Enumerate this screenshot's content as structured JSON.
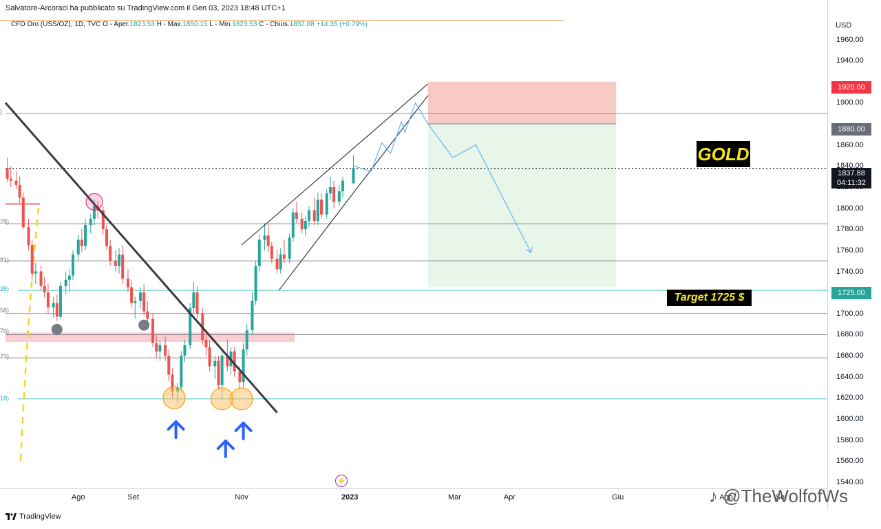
{
  "header": {
    "publisher": "Salvatore-Arcoraci ha pubblicato su TradingView.com il Gen 03, 2023 18:48 UTC+1",
    "symbol": "CFD Oro (USS/OZ), 1D, TVC",
    "open_label": "O - Aper.",
    "open": "1823.53",
    "high_label": "H - Max.",
    "high": "1850.15",
    "low_label": "L - Min.",
    "low": "1823.53",
    "close_label": "C - Chius.",
    "close": "1837.88",
    "change": "+14.35 (+0.79%)"
  },
  "axis": {
    "currency": "USD"
  },
  "price_badges": {
    "stop": "1920.00",
    "entry": "1880.00",
    "last": "1837.88",
    "countdown": "04:11:32",
    "target": "1725.00"
  },
  "annotations": {
    "gold": "GOLD",
    "target": "Target 1725 $",
    "fib_labels": [
      ")",
      "28)",
      "81)",
      "25)",
      "58)",
      "70)",
      "23)",
      "18)"
    ]
  },
  "footer": {
    "brand": "TradingView",
    "watermark": "@TheWolfofWs"
  },
  "colors": {
    "up": "#26a69a",
    "down": "#ef5350",
    "stop_zone": "#f8cac6",
    "target_zone": "#e8f5e9",
    "trendline": "#363a45",
    "projection": "#64b5f6",
    "fib": "#5ecbd1",
    "support_zone": "#f8c5cb",
    "arrow": "#2962ff",
    "label_bg": "#000000",
    "label_text": "#f5e61c"
  },
  "chart_data": {
    "type": "candlestick",
    "title": "",
    "y_axis_ticks": [
      1960,
      1940,
      1920,
      1900,
      1880,
      1860,
      1840,
      1820,
      1800,
      1780,
      1760,
      1740,
      1720,
      1700,
      1680,
      1660,
      1640,
      1620,
      1600,
      1580,
      1560,
      1540
    ],
    "y_axis_tick_labels": [
      "1960.00",
      "1940.00",
      "1920.00",
      "1900.00",
      "1880.00",
      "1860.00",
      "1840.00",
      "1820.00",
      "1800.00",
      "1780.00",
      "1760.00",
      "1740.00",
      "1720.00",
      "1700.00",
      "1680.00",
      "1660.00",
      "1640.00",
      "1620.00",
      "1600.00",
      "1580.00",
      "1560.00",
      "1540.00"
    ],
    "ylim": [
      1534,
      1978
    ],
    "x_axis_ticks": [
      {
        "label": "Ago",
        "date": "2022-08-01"
      },
      {
        "label": "Set",
        "date": "2022-09-01"
      },
      {
        "label": "Nov",
        "date": "2022-11-01"
      },
      {
        "label": "2023",
        "date": "2023-01-01"
      },
      {
        "label": "Mar",
        "date": "2023-03-01"
      },
      {
        "label": "Apr",
        "date": "2023-04-01"
      },
      {
        "label": "Giu",
        "date": "2023-06-01"
      },
      {
        "label": "Ago",
        "date": "2023-08-01"
      },
      {
        "label": "Set",
        "date": "2023-09-01"
      }
    ],
    "xlim": [
      "2022-06-21",
      "2023-09-27"
    ],
    "series": [
      {
        "type": "candles",
        "columns": [
          "date",
          "open",
          "high",
          "low",
          "close"
        ],
        "values": [
          [
            "2022-06-22",
            1838,
            1848,
            1825,
            1828
          ],
          [
            "2022-06-24",
            1828,
            1840,
            1820,
            1826
          ],
          [
            "2022-06-27",
            1826,
            1835,
            1818,
            1822
          ],
          [
            "2022-06-29",
            1822,
            1830,
            1805,
            1810
          ],
          [
            "2022-07-01",
            1810,
            1815,
            1780,
            1782
          ],
          [
            "2022-07-04",
            1782,
            1790,
            1760,
            1765
          ],
          [
            "2022-07-06",
            1765,
            1770,
            1732,
            1738
          ],
          [
            "2022-07-08",
            1738,
            1748,
            1728,
            1740
          ],
          [
            "2022-07-11",
            1740,
            1745,
            1722,
            1726
          ],
          [
            "2022-07-13",
            1726,
            1735,
            1715,
            1720
          ],
          [
            "2022-07-15",
            1720,
            1728,
            1700,
            1706
          ],
          [
            "2022-07-18",
            1706,
            1716,
            1696,
            1710
          ],
          [
            "2022-07-20",
            1710,
            1718,
            1693,
            1697
          ],
          [
            "2022-07-22",
            1697,
            1730,
            1695,
            1726
          ],
          [
            "2022-07-25",
            1726,
            1740,
            1718,
            1732
          ],
          [
            "2022-07-27",
            1732,
            1742,
            1720,
            1736
          ],
          [
            "2022-07-29",
            1736,
            1760,
            1732,
            1756
          ],
          [
            "2022-08-01",
            1756,
            1775,
            1750,
            1770
          ],
          [
            "2022-08-03",
            1770,
            1780,
            1758,
            1764
          ],
          [
            "2022-08-05",
            1764,
            1790,
            1760,
            1784
          ],
          [
            "2022-08-08",
            1784,
            1795,
            1776,
            1790
          ],
          [
            "2022-08-10",
            1790,
            1808,
            1784,
            1802
          ],
          [
            "2022-08-12",
            1802,
            1807,
            1790,
            1798
          ],
          [
            "2022-08-15",
            1798,
            1802,
            1775,
            1780
          ],
          [
            "2022-08-17",
            1780,
            1784,
            1760,
            1764
          ],
          [
            "2022-08-19",
            1764,
            1770,
            1745,
            1750
          ],
          [
            "2022-08-22",
            1750,
            1760,
            1740,
            1745
          ],
          [
            "2022-08-24",
            1745,
            1762,
            1738,
            1756
          ],
          [
            "2022-08-26",
            1756,
            1765,
            1728,
            1733
          ],
          [
            "2022-08-29",
            1733,
            1742,
            1720,
            1725
          ],
          [
            "2022-08-31",
            1725,
            1732,
            1706,
            1710
          ],
          [
            "2022-09-02",
            1710,
            1716,
            1695,
            1712
          ],
          [
            "2022-09-05",
            1712,
            1725,
            1705,
            1720
          ],
          [
            "2022-09-07",
            1720,
            1728,
            1698,
            1702
          ],
          [
            "2022-09-09",
            1702,
            1712,
            1690,
            1695
          ],
          [
            "2022-09-12",
            1695,
            1700,
            1668,
            1672
          ],
          [
            "2022-09-14",
            1672,
            1680,
            1658,
            1664
          ],
          [
            "2022-09-16",
            1664,
            1675,
            1655,
            1670
          ],
          [
            "2022-09-19",
            1670,
            1678,
            1655,
            1660
          ],
          [
            "2022-09-21",
            1660,
            1666,
            1636,
            1642
          ],
          [
            "2022-09-23",
            1642,
            1648,
            1620,
            1626
          ],
          [
            "2022-09-26",
            1626,
            1634,
            1615,
            1630
          ],
          [
            "2022-09-28",
            1630,
            1664,
            1626,
            1660
          ],
          [
            "2022-09-30",
            1660,
            1675,
            1654,
            1670
          ],
          [
            "2022-10-03",
            1670,
            1710,
            1666,
            1705
          ],
          [
            "2022-10-05",
            1705,
            1730,
            1700,
            1720
          ],
          [
            "2022-10-07",
            1720,
            1726,
            1695,
            1700
          ],
          [
            "2022-10-10",
            1700,
            1705,
            1670,
            1675
          ],
          [
            "2022-10-12",
            1675,
            1680,
            1660,
            1668
          ],
          [
            "2022-10-14",
            1668,
            1675,
            1645,
            1650
          ],
          [
            "2022-10-17",
            1650,
            1660,
            1638,
            1655
          ],
          [
            "2022-10-19",
            1655,
            1660,
            1628,
            1632
          ],
          [
            "2022-10-21",
            1632,
            1665,
            1618,
            1660
          ],
          [
            "2022-10-24",
            1660,
            1675,
            1645,
            1650
          ],
          [
            "2022-10-26",
            1650,
            1668,
            1642,
            1664
          ],
          [
            "2022-10-28",
            1664,
            1668,
            1640,
            1645
          ],
          [
            "2022-10-31",
            1645,
            1650,
            1628,
            1635
          ],
          [
            "2022-11-02",
            1635,
            1672,
            1630,
            1666
          ],
          [
            "2022-11-04",
            1666,
            1690,
            1660,
            1684
          ],
          [
            "2022-11-07",
            1684,
            1720,
            1680,
            1712
          ],
          [
            "2022-11-09",
            1712,
            1750,
            1708,
            1745
          ],
          [
            "2022-11-11",
            1745,
            1775,
            1740,
            1770
          ],
          [
            "2022-11-14",
            1770,
            1786,
            1760,
            1774
          ],
          [
            "2022-11-16",
            1774,
            1785,
            1758,
            1764
          ],
          [
            "2022-11-18",
            1764,
            1768,
            1748,
            1752
          ],
          [
            "2022-11-21",
            1752,
            1760,
            1738,
            1742
          ],
          [
            "2022-11-23",
            1742,
            1762,
            1738,
            1756
          ],
          [
            "2022-11-25",
            1756,
            1770,
            1748,
            1752
          ],
          [
            "2022-11-28",
            1752,
            1776,
            1748,
            1772
          ],
          [
            "2022-11-30",
            1772,
            1800,
            1768,
            1796
          ],
          [
            "2022-12-02",
            1796,
            1806,
            1786,
            1790
          ],
          [
            "2022-12-05",
            1790,
            1796,
            1776,
            1780
          ],
          [
            "2022-12-07",
            1780,
            1792,
            1774,
            1788
          ],
          [
            "2022-12-09",
            1788,
            1802,
            1782,
            1798
          ],
          [
            "2022-12-12",
            1798,
            1810,
            1784,
            1788
          ],
          [
            "2022-12-14",
            1788,
            1815,
            1784,
            1808
          ],
          [
            "2022-12-16",
            1808,
            1814,
            1790,
            1794
          ],
          [
            "2022-12-19",
            1794,
            1818,
            1790,
            1814
          ],
          [
            "2022-12-21",
            1814,
            1830,
            1808,
            1820
          ],
          [
            "2022-12-23",
            1820,
            1826,
            1800,
            1806
          ],
          [
            "2022-12-26",
            1806,
            1822,
            1802,
            1816
          ],
          [
            "2022-12-28",
            1816,
            1830,
            1810,
            1826
          ],
          [
            "2023-01-03",
            1823.53,
            1850.15,
            1823.53,
            1837.88
          ]
        ]
      },
      {
        "type": "projection_path",
        "name": "",
        "points": [
          [
            "2023-01-03",
            1840
          ],
          [
            "2023-01-13",
            1835
          ],
          [
            "2023-01-19",
            1862
          ],
          [
            "2023-01-24",
            1852
          ],
          [
            "2023-01-30",
            1882
          ],
          [
            "2023-02-01",
            1872
          ],
          [
            "2023-02-07",
            1900
          ],
          [
            "2023-02-14",
            1880
          ],
          [
            "2023-02-28",
            1848
          ],
          [
            "2023-03-13",
            1860
          ],
          [
            "2023-04-13",
            1758
          ]
        ]
      }
    ],
    "trade_setup": {
      "entry_price": 1880,
      "stop_price": 1920,
      "target_price": 1725,
      "start_date": "2023-02-14",
      "end_date": "2023-05-31"
    },
    "horizontal_lines": [
      1890,
      1785,
      1750,
      1700,
      1680,
      1658
    ],
    "fibonacci_levels": [
      1722,
      1619
    ],
    "support_zone": [
      1673,
      1682
    ],
    "last_price_line": 1837.88,
    "trendlines": [
      {
        "name": "descending-resistance",
        "from": [
          "2022-06-21",
          1900
        ],
        "to": [
          "2022-11-21",
          1606
        ]
      },
      {
        "name": "wedge-upper",
        "from": [
          "2022-11-01",
          1765
        ],
        "to": [
          "2023-02-14",
          1918
        ]
      },
      {
        "name": "wedge-lower",
        "from": [
          "2022-11-22",
          1722
        ],
        "to": [
          "2023-02-14",
          1907
        ]
      }
    ],
    "circle_markers": [
      {
        "kind": "rejection",
        "date": "2022-08-10",
        "price": 1806
      },
      {
        "kind": "swing-low",
        "date": "2022-07-20",
        "price": 1685
      },
      {
        "kind": "swing-low",
        "date": "2022-09-07",
        "price": 1689
      },
      {
        "kind": "bottom",
        "date": "2022-09-24",
        "price": 1620
      },
      {
        "kind": "bottom",
        "date": "2022-10-21",
        "price": 1619
      },
      {
        "kind": "bottom",
        "date": "2022-11-01",
        "price": 1619
      }
    ],
    "arrow_markers": [
      {
        "direction": "up",
        "date": "2022-09-25"
      },
      {
        "direction": "up",
        "date": "2022-10-23"
      },
      {
        "direction": "up",
        "date": "2022-11-02"
      }
    ]
  }
}
